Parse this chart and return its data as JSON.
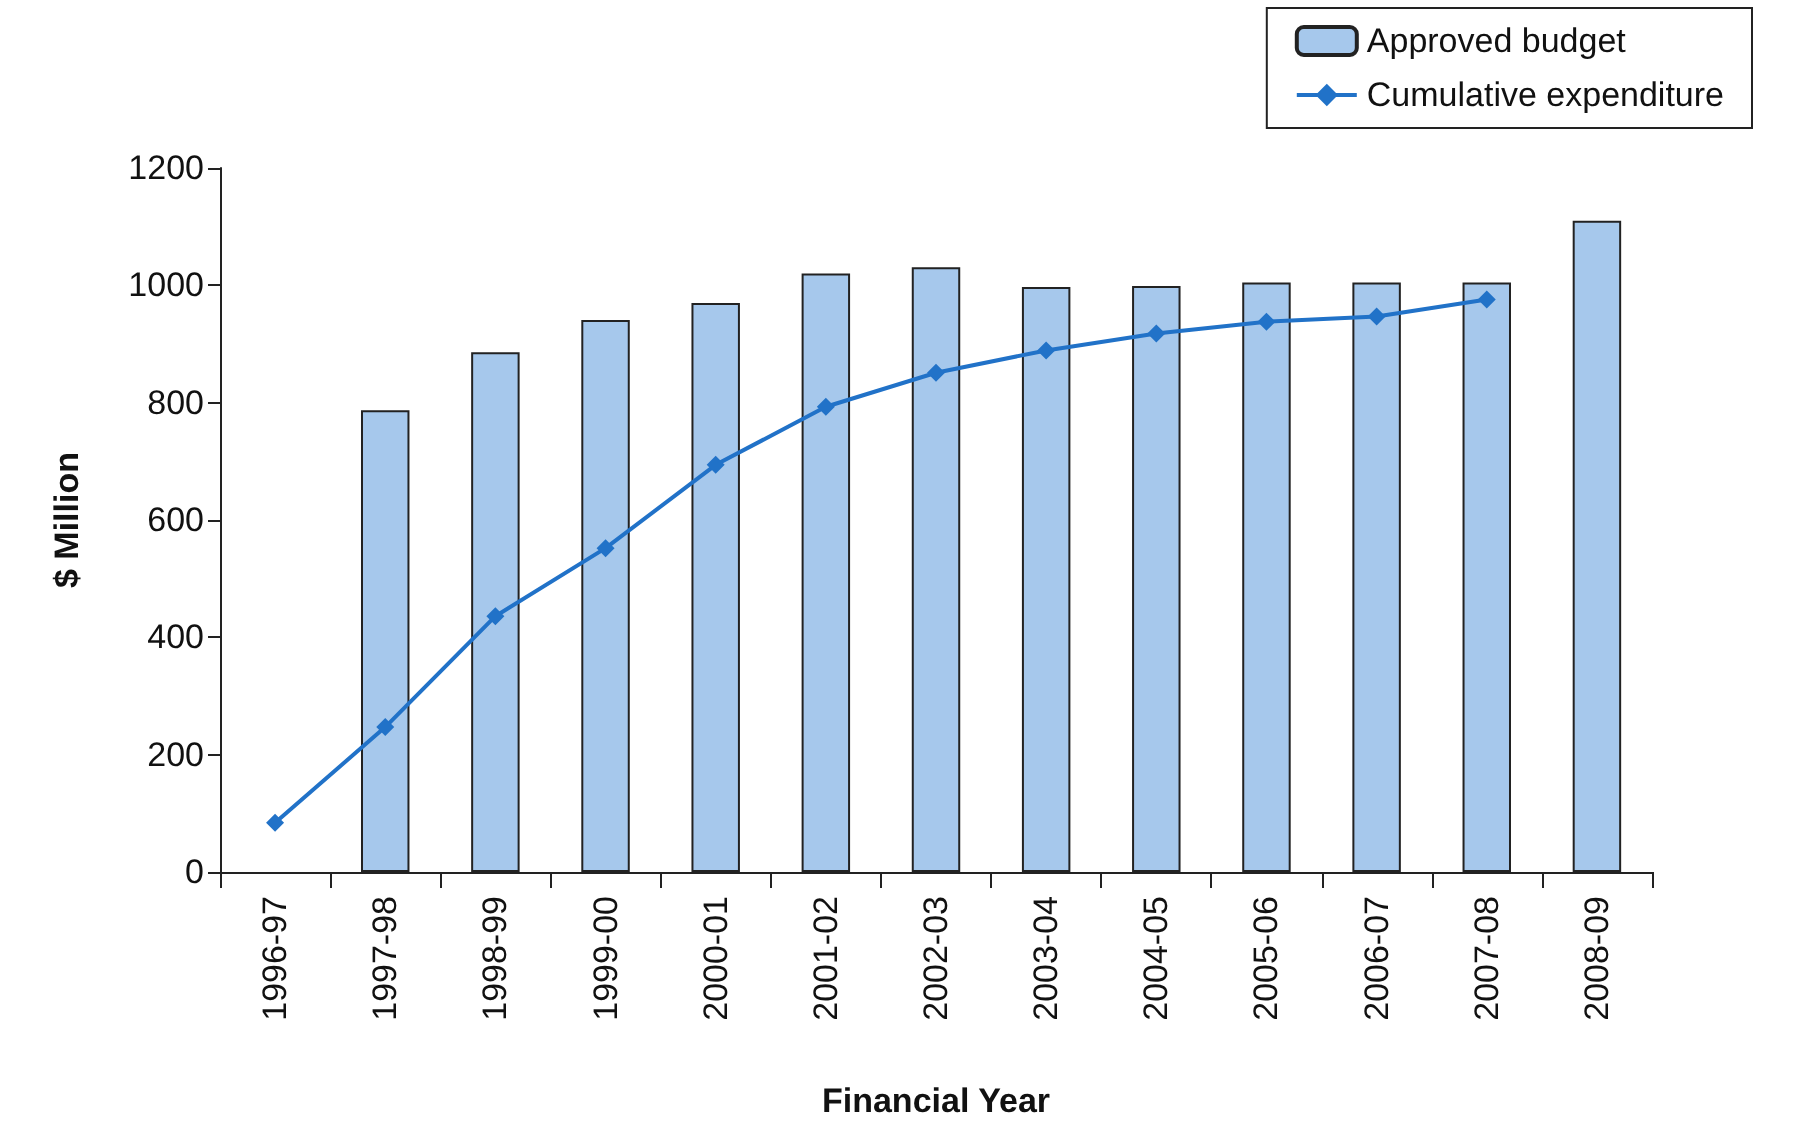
{
  "chart_data": {
    "type": "bar",
    "xlabel": "Financial Year",
    "ylabel": "$ Million",
    "categories": [
      "1996-97",
      "1997-98",
      "1998-99",
      "1999-00",
      "2000-01",
      "2001-02",
      "2002-03",
      "2003-04",
      "2004-05",
      "2005-06",
      "2006-07",
      "2007-08",
      "2008-09"
    ],
    "series": [
      {
        "name": "Approved budget",
        "color": "#a6c8ec",
        "values": [
          null,
          787,
          886,
          941,
          970,
          1020,
          1031,
          997,
          999,
          1005,
          1005,
          1005,
          1110
        ]
      },
      {
        "name": "Cumulative expenditure",
        "type": "line",
        "color": "#2172c8",
        "marker": "diamond",
        "values": [
          84,
          247,
          436,
          552,
          694,
          793,
          851,
          889,
          918,
          938,
          947,
          976,
          null
        ]
      }
    ],
    "ylim": [
      0,
      1200
    ],
    "yticks": [
      0,
      200,
      400,
      600,
      800,
      1000,
      1200
    ],
    "grid": false,
    "legend": "top right"
  }
}
